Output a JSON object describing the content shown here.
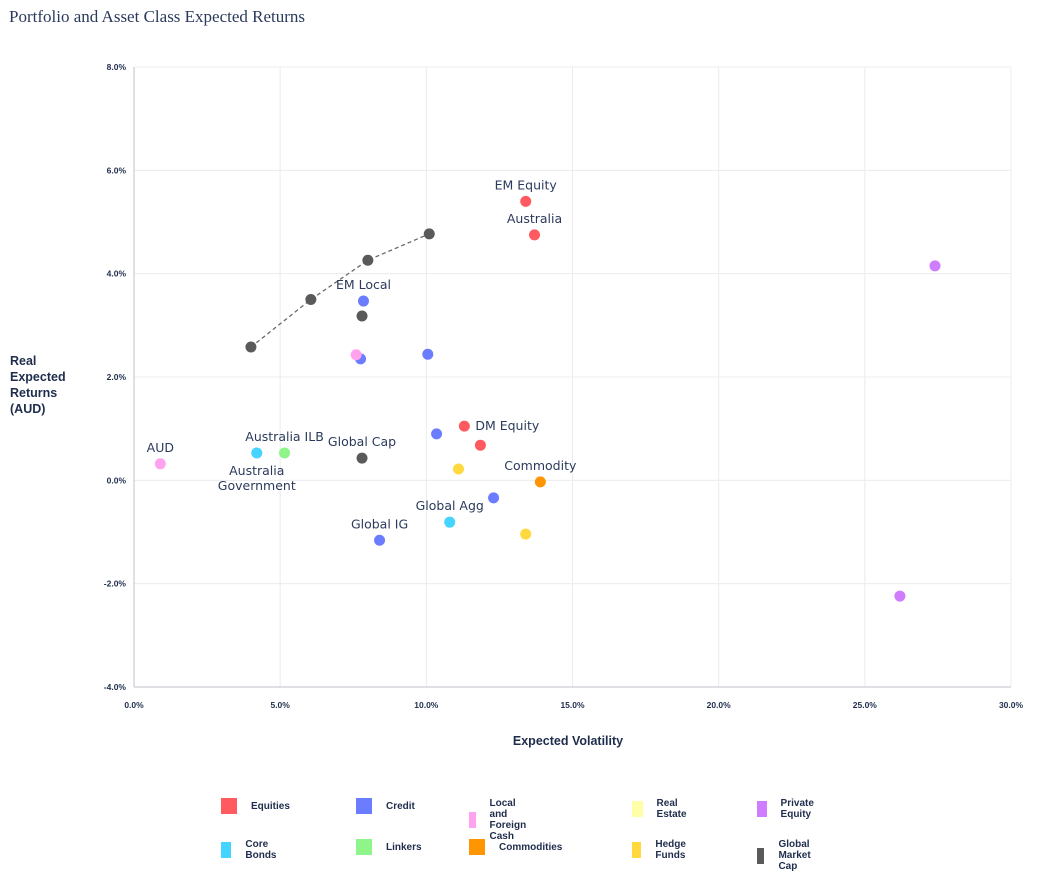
{
  "title": "Portfolio and Asset Class Expected Returns",
  "chart_data": {
    "type": "scatter",
    "title": "Portfolio and Asset Class Expected Returns",
    "xlabel": "Expected Volatility",
    "ylabel": "Real Expected Returns (AUD)",
    "xlim": [
      0,
      30
    ],
    "ylim": [
      -4,
      8
    ],
    "x_ticks": [
      "0.0%",
      "5.0%",
      "10.0%",
      "15.0%",
      "20.0%",
      "25.0%",
      "30.0%"
    ],
    "y_ticks": [
      "8.0%",
      "6.0%",
      "4.0%",
      "2.0%",
      "0.0%",
      "-2.0%",
      "-4.0%"
    ],
    "x_tick_values": [
      0,
      5,
      10,
      15,
      20,
      25,
      30
    ],
    "y_tick_values": [
      8,
      6,
      4,
      2,
      0,
      -2,
      -4
    ],
    "grid": true,
    "legend_position": "bottom",
    "series": [
      {
        "name": "Equities",
        "color": "#ff5a5f",
        "points": [
          {
            "x": 13.4,
            "y": 5.4,
            "label": "EM Equity",
            "label_pos": "above"
          },
          {
            "x": 13.7,
            "y": 4.75,
            "label": "Australia",
            "label_pos": "above"
          },
          {
            "x": 11.3,
            "y": 1.05,
            "label": "DM Equity",
            "label_pos": "right"
          },
          {
            "x": 11.85,
            "y": 0.68,
            "label": ""
          }
        ]
      },
      {
        "name": "Credit",
        "color": "#6b7cff",
        "points": [
          {
            "x": 7.85,
            "y": 3.47,
            "label": "EM Local",
            "label_pos": "above"
          },
          {
            "x": 7.75,
            "y": 2.35,
            "label": ""
          },
          {
            "x": 10.05,
            "y": 2.44,
            "label": ""
          },
          {
            "x": 10.35,
            "y": 0.9,
            "label": ""
          },
          {
            "x": 12.3,
            "y": -0.34,
            "label": ""
          },
          {
            "x": 8.4,
            "y": -1.16,
            "label": "Global IG",
            "label_pos": "above"
          }
        ]
      },
      {
        "name": "Local and Foreign Cash",
        "color": "#ffa3f0",
        "points": [
          {
            "x": 7.6,
            "y": 2.43,
            "label": ""
          },
          {
            "x": 0.9,
            "y": 0.32,
            "label": "AUD",
            "label_pos": "above"
          }
        ]
      },
      {
        "name": "Real Estate",
        "color": "#ffffa8",
        "points": []
      },
      {
        "name": "Private Equity",
        "color": "#cf7cff",
        "points": [
          {
            "x": 27.4,
            "y": 4.15,
            "label": ""
          },
          {
            "x": 26.2,
            "y": -2.24,
            "label": ""
          }
        ]
      },
      {
        "name": "Core Bonds",
        "color": "#45d3ff",
        "points": [
          {
            "x": 4.2,
            "y": 0.53,
            "label": "Australia Government",
            "label_pos": "below"
          },
          {
            "x": 10.8,
            "y": -0.81,
            "label": "Global Agg",
            "label_pos": "above"
          }
        ]
      },
      {
        "name": "Linkers",
        "color": "#8ff58a",
        "points": [
          {
            "x": 5.15,
            "y": 0.53,
            "label": "Australia ILB",
            "label_pos": "above"
          }
        ]
      },
      {
        "name": "Commodities",
        "color": "#ff9500",
        "points": [
          {
            "x": 13.9,
            "y": -0.03,
            "label": "Commodity",
            "label_pos": "above"
          }
        ]
      },
      {
        "name": "Hedge Funds",
        "color": "#ffd93d",
        "points": [
          {
            "x": 11.1,
            "y": 0.22,
            "label": ""
          },
          {
            "x": 13.4,
            "y": -1.04,
            "label": ""
          }
        ]
      },
      {
        "name": "Global Market Cap",
        "color": "#5a5a5a",
        "points": [
          {
            "x": 4.0,
            "y": 2.58,
            "label": ""
          },
          {
            "x": 6.05,
            "y": 3.5,
            "label": ""
          },
          {
            "x": 8.0,
            "y": 4.26,
            "label": ""
          },
          {
            "x": 10.1,
            "y": 4.77,
            "label": ""
          },
          {
            "x": 7.8,
            "y": 3.18,
            "label": ""
          },
          {
            "x": 7.8,
            "y": 0.43,
            "label": "Global Cap",
            "label_pos": "above"
          }
        ]
      }
    ],
    "frontier_line": {
      "series": "Global Market Cap",
      "style": "dashed",
      "points": [
        [
          4.0,
          2.58
        ],
        [
          6.05,
          3.5
        ],
        [
          8.0,
          4.26
        ],
        [
          10.1,
          4.77
        ]
      ]
    }
  },
  "legend": [
    {
      "label": "Equities",
      "color": "#ff5a5f"
    },
    {
      "label": "Credit",
      "color": "#6b7cff"
    },
    {
      "label": "Local and Foreign Cash",
      "color": "#ffa3f0"
    },
    {
      "label": "Real Estate",
      "color": "#ffffa8"
    },
    {
      "label": "Private Equity",
      "color": "#cf7cff"
    },
    {
      "label": "Core Bonds",
      "color": "#45d3ff"
    },
    {
      "label": "Linkers",
      "color": "#8ff58a"
    },
    {
      "label": "Commodities",
      "color": "#ff9500"
    },
    {
      "label": "Hedge Funds",
      "color": "#ffd93d"
    },
    {
      "label": "Global Market Cap",
      "color": "#5a5a5a"
    }
  ]
}
